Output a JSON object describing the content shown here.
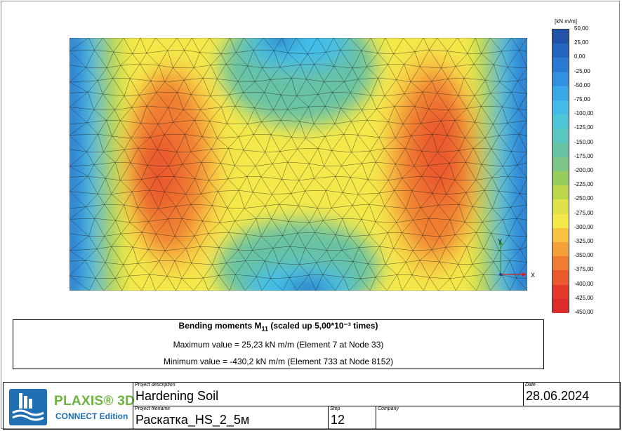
{
  "legend": {
    "unit": "[kN m/m]",
    "levels": [
      {
        "label": "50,00",
        "color": "#1c3f8a"
      },
      {
        "label": "25,00",
        "color": "#2154a6"
      },
      {
        "label": "0,00",
        "color": "#2466bf"
      },
      {
        "label": "-25,00",
        "color": "#2a7ad3"
      },
      {
        "label": "-50,00",
        "color": "#3190e0"
      },
      {
        "label": "-75,00",
        "color": "#38a8e8"
      },
      {
        "label": "-100,00",
        "color": "#43bde8"
      },
      {
        "label": "-125,00",
        "color": "#4fc6d8"
      },
      {
        "label": "-150,00",
        "color": "#5cc6c0"
      },
      {
        "label": "-175,00",
        "color": "#68c2a4"
      },
      {
        "label": "-200,00",
        "color": "#7cc686"
      },
      {
        "label": "-225,00",
        "color": "#99cc5f"
      },
      {
        "label": "-250,00",
        "color": "#bcd64a"
      },
      {
        "label": "-275,00",
        "color": "#dee14a"
      },
      {
        "label": "-300,00",
        "color": "#f4e94a"
      },
      {
        "label": "-325,00",
        "color": "#f8c342"
      },
      {
        "label": "-350,00",
        "color": "#f6a03a"
      },
      {
        "label": "-375,00",
        "color": "#f07c33"
      },
      {
        "label": "-400,00",
        "color": "#ea5a2e"
      },
      {
        "label": "-425,00",
        "color": "#e3382a"
      },
      {
        "label": "-450,00",
        "color": "#dd2a2a"
      }
    ]
  },
  "axes": {
    "y_label": "Y",
    "x_label": "X"
  },
  "info": {
    "title_prefix": "Bending moments M",
    "title_sub": "11",
    "title_suffix": " (scaled up 5,00*10⁻³ times)",
    "max_line": "Maximum value = 25,23 kN m/m (Element 7 at Node 33)",
    "min_line": "Minimum value = -430,2 kN m/m (Element 733 at Node 8152)"
  },
  "title_block": {
    "brand": "PLAXIS® 3D",
    "edition": "CONNECT Edition",
    "project_description_caption": "Project description",
    "project_description": "Hardening Soil",
    "date_caption": "Date",
    "date": "28.06.2024",
    "project_filename_caption": "Project filename",
    "project_filename": "Раскатка_HS_2_5м",
    "step_caption": "Step",
    "step": "12",
    "company_caption": "Company",
    "company": ""
  }
}
